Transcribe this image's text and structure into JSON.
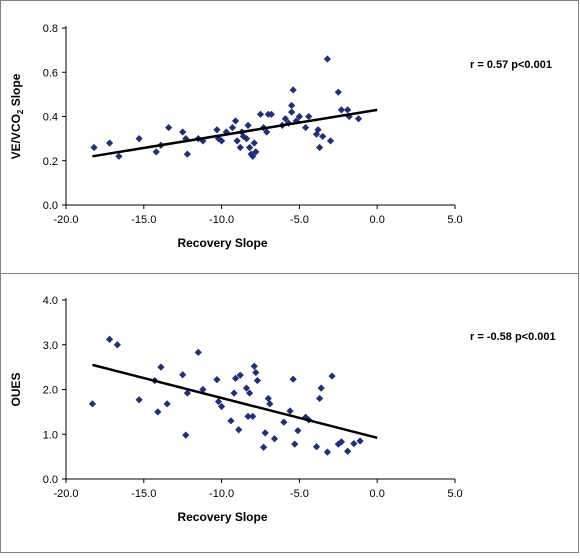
{
  "chart_data": [
    {
      "type": "scatter",
      "ylabel_main": "VE/VCO",
      "ylabel_sub": "2",
      "ylabel_tail": " Slope",
      "xlabel": "Recovery Slope",
      "xlim": [
        -20,
        5
      ],
      "ylim": [
        0,
        0.8
      ],
      "xticks": [
        "-20.0",
        "-15.0",
        "-10.0",
        "-5.0",
        "0.0",
        "5.0"
      ],
      "yticks": [
        "0.0",
        "0.2",
        "0.4",
        "0.6",
        "0.8"
      ],
      "xtick_values": [
        -20,
        -15,
        -10,
        -5,
        0,
        5
      ],
      "ytick_values": [
        0,
        0.2,
        0.4,
        0.6,
        0.8
      ],
      "annotation": "r = 0.57  p<0.001",
      "marker_color": "#1F2F7A",
      "trendline": {
        "x": [
          -18.3,
          0
        ],
        "y": [
          0.22,
          0.43
        ]
      },
      "points": [
        [
          -18.2,
          0.26
        ],
        [
          -17.2,
          0.28
        ],
        [
          -16.6,
          0.22
        ],
        [
          -15.3,
          0.3
        ],
        [
          -14.2,
          0.24
        ],
        [
          -13.9,
          0.27
        ],
        [
          -13.4,
          0.35
        ],
        [
          -12.5,
          0.33
        ],
        [
          -12.3,
          0.3
        ],
        [
          -12.2,
          0.23
        ],
        [
          -11.5,
          0.3
        ],
        [
          -11.2,
          0.29
        ],
        [
          -10.3,
          0.34
        ],
        [
          -10.2,
          0.3
        ],
        [
          -10.0,
          0.29
        ],
        [
          -9.7,
          0.33
        ],
        [
          -9.3,
          0.35
        ],
        [
          -9.1,
          0.38
        ],
        [
          -9.0,
          0.29
        ],
        [
          -8.8,
          0.26
        ],
        [
          -8.7,
          0.33
        ],
        [
          -8.6,
          0.31
        ],
        [
          -8.4,
          0.3
        ],
        [
          -8.3,
          0.36
        ],
        [
          -8.2,
          0.26
        ],
        [
          -8.1,
          0.23
        ],
        [
          -8.0,
          0.22
        ],
        [
          -7.9,
          0.28
        ],
        [
          -7.8,
          0.24
        ],
        [
          -7.5,
          0.41
        ],
        [
          -7.3,
          0.35
        ],
        [
          -7.1,
          0.33
        ],
        [
          -7.0,
          0.41
        ],
        [
          -6.8,
          0.41
        ],
        [
          -6.1,
          0.36
        ],
        [
          -5.9,
          0.39
        ],
        [
          -5.7,
          0.37
        ],
        [
          -5.5,
          0.42
        ],
        [
          -5.5,
          0.45
        ],
        [
          -5.4,
          0.52
        ],
        [
          -5.2,
          0.38
        ],
        [
          -5.0,
          0.4
        ],
        [
          -4.6,
          0.35
        ],
        [
          -4.4,
          0.4
        ],
        [
          -3.9,
          0.32
        ],
        [
          -3.8,
          0.34
        ],
        [
          -3.7,
          0.26
        ],
        [
          -3.5,
          0.31
        ],
        [
          -3.2,
          0.66
        ],
        [
          -3.0,
          0.29
        ],
        [
          -2.5,
          0.51
        ],
        [
          -2.3,
          0.43
        ],
        [
          -1.9,
          0.43
        ],
        [
          -1.8,
          0.4
        ],
        [
          -1.2,
          0.39
        ]
      ]
    },
    {
      "type": "scatter",
      "ylabel_main": "OUES",
      "ylabel_sub": "",
      "ylabel_tail": "",
      "xlabel": "Recovery Slope",
      "xlim": [
        -20,
        5
      ],
      "ylim": [
        0,
        4
      ],
      "xticks": [
        "-20.0",
        "-15.0",
        "-10.0",
        "-5.0",
        "0.0",
        "5.0"
      ],
      "yticks": [
        "0.0",
        "1.0",
        "2.0",
        "3.0",
        "4.0"
      ],
      "xtick_values": [
        -20,
        -15,
        -10,
        -5,
        0,
        5
      ],
      "ytick_values": [
        0,
        1,
        2,
        3,
        4
      ],
      "annotation": "r = -0.58  p<0.001",
      "marker_color": "#1F2F7A",
      "trendline": {
        "x": [
          -18.3,
          0
        ],
        "y": [
          2.55,
          0.92
        ]
      },
      "points": [
        [
          -18.3,
          1.68
        ],
        [
          -17.2,
          3.12
        ],
        [
          -16.7,
          3.0
        ],
        [
          -15.3,
          1.77
        ],
        [
          -14.3,
          2.2
        ],
        [
          -14.1,
          1.5
        ],
        [
          -13.9,
          2.5
        ],
        [
          -13.5,
          1.68
        ],
        [
          -12.5,
          2.33
        ],
        [
          -12.3,
          0.98
        ],
        [
          -12.2,
          1.92
        ],
        [
          -11.5,
          2.83
        ],
        [
          -11.2,
          2.0
        ],
        [
          -10.3,
          2.22
        ],
        [
          -10.2,
          1.73
        ],
        [
          -10.0,
          1.62
        ],
        [
          -9.4,
          1.3
        ],
        [
          -9.2,
          1.92
        ],
        [
          -9.1,
          2.25
        ],
        [
          -8.9,
          1.1
        ],
        [
          -8.8,
          2.32
        ],
        [
          -8.4,
          2.03
        ],
        [
          -8.3,
          1.4
        ],
        [
          -8.2,
          1.92
        ],
        [
          -8.0,
          1.4
        ],
        [
          -7.9,
          2.52
        ],
        [
          -7.8,
          2.38
        ],
        [
          -7.7,
          2.2
        ],
        [
          -7.3,
          0.71
        ],
        [
          -7.2,
          1.03
        ],
        [
          -7.0,
          1.8
        ],
        [
          -6.9,
          1.68
        ],
        [
          -6.6,
          0.9
        ],
        [
          -6.0,
          1.27
        ],
        [
          -5.6,
          1.52
        ],
        [
          -5.4,
          2.23
        ],
        [
          -5.3,
          0.78
        ],
        [
          -5.1,
          1.08
        ],
        [
          -4.6,
          1.38
        ],
        [
          -4.4,
          1.32
        ],
        [
          -3.9,
          0.72
        ],
        [
          -3.7,
          1.8
        ],
        [
          -3.6,
          2.03
        ],
        [
          -3.2,
          0.6
        ],
        [
          -2.9,
          2.3
        ],
        [
          -2.5,
          0.78
        ],
        [
          -2.3,
          0.83
        ],
        [
          -1.9,
          0.62
        ],
        [
          -1.5,
          0.79
        ],
        [
          -1.1,
          0.85
        ]
      ]
    }
  ]
}
